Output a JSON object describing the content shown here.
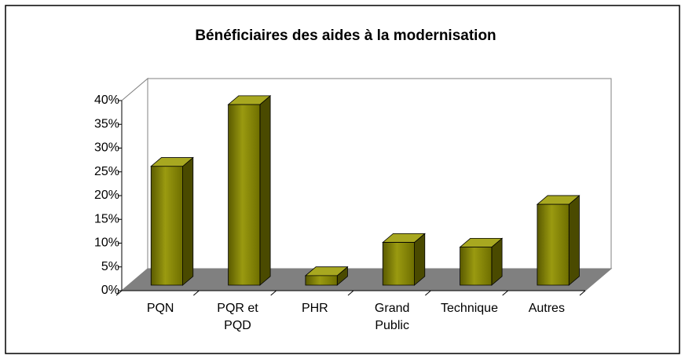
{
  "chart_data": {
    "type": "bar3d",
    "title": "Bénéficiaires des aides à la modernisation",
    "categories": [
      "PQN",
      "PQR et PQD",
      "PHR",
      "Grand Public",
      "Technique",
      "Autres"
    ],
    "values": [
      25,
      38,
      2,
      9,
      8,
      17
    ],
    "color": "#808000",
    "ylim": [
      0,
      40
    ],
    "yticks": [
      {
        "value": 0,
        "label": "0%"
      },
      {
        "value": 5,
        "label": "5%"
      },
      {
        "value": 10,
        "label": "10%"
      },
      {
        "value": 15,
        "label": "15%"
      },
      {
        "value": 20,
        "label": "20%"
      },
      {
        "value": 25,
        "label": "25%"
      },
      {
        "value": 30,
        "label": "30%"
      },
      {
        "value": 35,
        "label": "35%"
      },
      {
        "value": 40,
        "label": "40%"
      }
    ],
    "grid": false
  }
}
